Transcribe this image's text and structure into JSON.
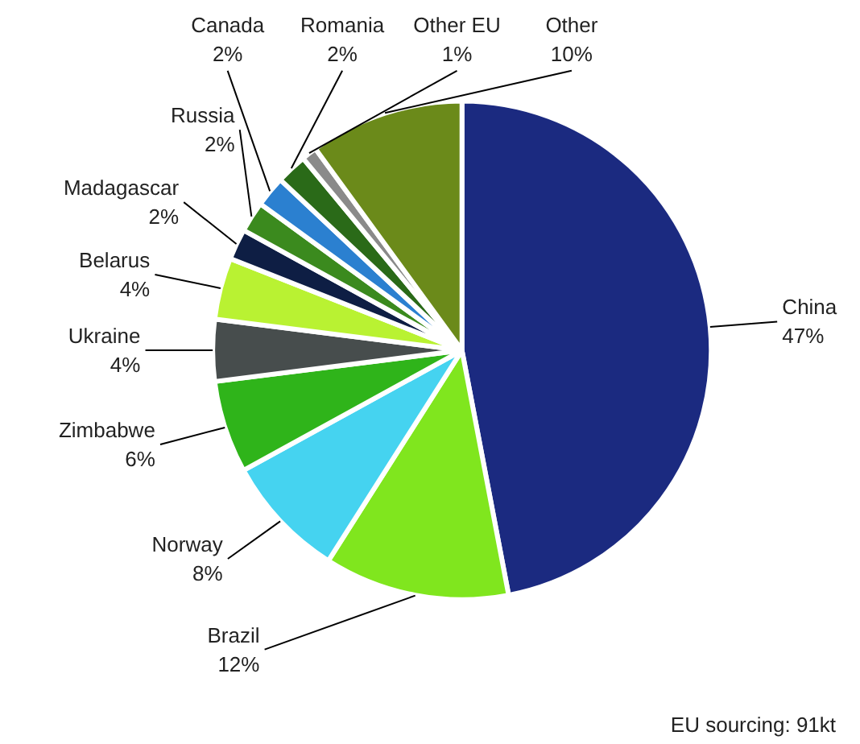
{
  "chart_data": {
    "type": "pie",
    "categories": [
      "China",
      "Brazil",
      "Norway",
      "Zimbabwe",
      "Ukraine",
      "Belarus",
      "Madagascar",
      "Russia",
      "Canada",
      "Romania",
      "Other EU",
      "Other"
    ],
    "values": [
      47,
      12,
      8,
      6,
      4,
      4,
      2,
      2,
      2,
      2,
      1,
      10
    ],
    "value_labels": [
      "47%",
      "12%",
      "8%",
      "6%",
      "4%",
      "4%",
      "2%",
      "2%",
      "2%",
      "2%",
      "1%",
      "10%"
    ],
    "colors": [
      "#1b2a80",
      "#80e61e",
      "#45d3f0",
      "#2fb41a",
      "#474d4d",
      "#b9f232",
      "#0e1e44",
      "#3b8a1e",
      "#2b80d0",
      "#2a6a18",
      "#8a8a8a",
      "#6b8a1a"
    ],
    "annotations": [
      "EU sourcing: 91kt"
    ]
  }
}
